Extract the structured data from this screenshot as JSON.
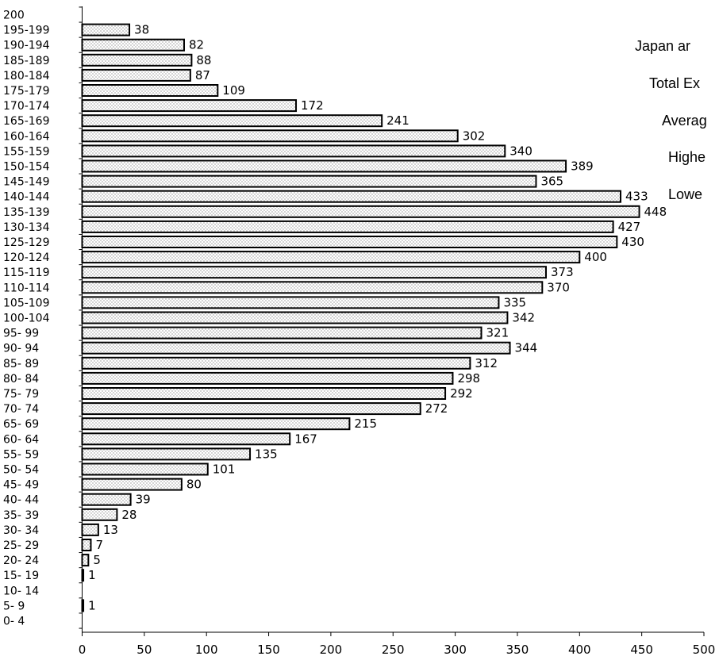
{
  "chart_data": {
    "type": "bar",
    "orientation": "horizontal",
    "categories": [
      "200",
      "195-199",
      "190-194",
      "185-189",
      "180-184",
      "175-179",
      "170-174",
      "165-169",
      "160-164",
      "155-159",
      "150-154",
      "145-149",
      "140-144",
      "135-139",
      "130-134",
      "125-129",
      "120-124",
      "115-119",
      "110-114",
      "105-109",
      "100-104",
      "95- 99",
      "90- 94",
      "85- 89",
      "80- 84",
      "75- 79",
      "70- 74",
      "65- 69",
      "60- 64",
      "55- 59",
      "50- 54",
      "45- 49",
      "40- 44",
      "35- 39",
      "30- 34",
      "25- 29",
      "20- 24",
      "15- 19",
      "10- 14",
      "5- 9",
      "0- 4"
    ],
    "values": [
      0,
      38,
      82,
      88,
      87,
      109,
      172,
      241,
      302,
      340,
      389,
      365,
      433,
      448,
      427,
      430,
      400,
      373,
      370,
      335,
      342,
      321,
      344,
      312,
      298,
      292,
      272,
      215,
      167,
      135,
      101,
      80,
      39,
      28,
      13,
      7,
      5,
      1,
      0,
      1,
      0
    ],
    "xlim": [
      0,
      500
    ],
    "x_ticks": [
      "0",
      "50",
      "100",
      "150",
      "200",
      "250",
      "300",
      "350",
      "400",
      "450",
      "500"
    ],
    "bar_fill": "#d9d9d9",
    "bar_stroke": "#000000",
    "grid": false
  },
  "side_text": [
    "Japan ar",
    "Total Ex",
    "Averag",
    "Highe",
    "Lowe"
  ]
}
